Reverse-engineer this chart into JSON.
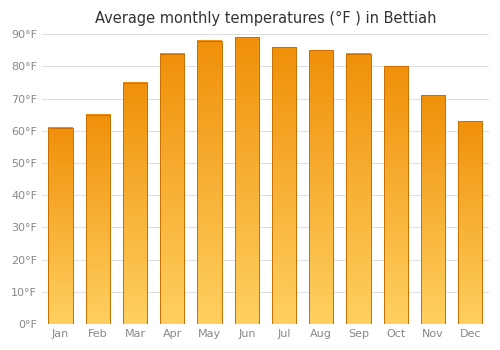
{
  "title": "Average monthly temperatures (°F ) in Bettiah",
  "months": [
    "Jan",
    "Feb",
    "Mar",
    "Apr",
    "May",
    "Jun",
    "Jul",
    "Aug",
    "Sep",
    "Oct",
    "Nov",
    "Dec"
  ],
  "values": [
    61,
    65,
    75,
    84,
    88,
    89,
    86,
    85,
    84,
    80,
    71,
    63
  ],
  "bar_color_main": "#FFA620",
  "bar_color_light": "#FFD060",
  "bar_color_dark": "#F0900A",
  "bar_edge_color": "#C87000",
  "ylim": [
    0,
    90
  ],
  "yticks": [
    0,
    10,
    20,
    30,
    40,
    50,
    60,
    70,
    80,
    90
  ],
  "ytick_labels": [
    "0°F",
    "10°F",
    "20°F",
    "30°F",
    "40°F",
    "50°F",
    "60°F",
    "70°F",
    "80°F",
    "90°F"
  ],
  "background_color": "#ffffff",
  "grid_color": "#dddddd",
  "title_fontsize": 10.5,
  "tick_fontsize": 8,
  "tick_color": "#888888"
}
